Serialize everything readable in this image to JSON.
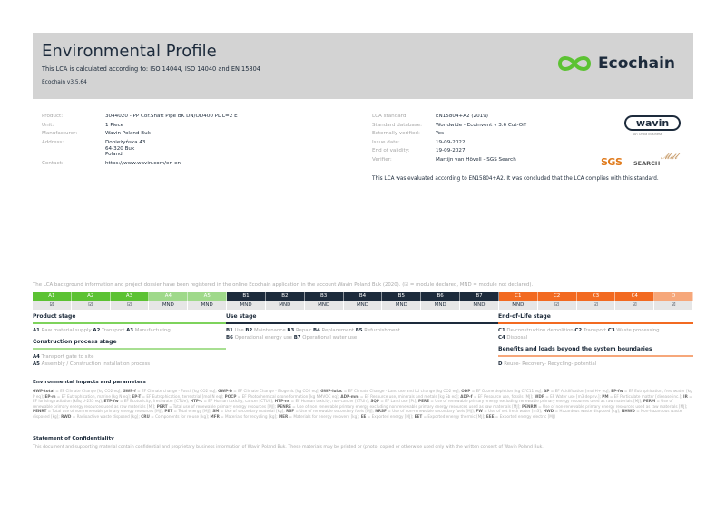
{
  "header": {
    "title": "Environmental Profile",
    "subtitle": "This LCA is calculated according to: ISO 14044, ISO 14040 and EN 15804",
    "version": "Ecochain v3.5.64",
    "logo_text": "Ecochain",
    "logo_color": "#5cc233"
  },
  "product_info": [
    {
      "label": "Product:",
      "value": "3044020 - PP Cor.Shaft Pipe BK DN/OD400 PL L=2 E"
    },
    {
      "label": "Unit:",
      "value": "1 Piece"
    },
    {
      "label": "Manufacturer:",
      "value": "Wavin Poland Buk"
    },
    {
      "label": "Address:",
      "value": "Dobieżyńska 43",
      "value2": "64-320 Buk",
      "value3": "Poland"
    },
    {
      "label": "Contact:",
      "value": "https://www.wavin.com/en-en"
    }
  ],
  "lca_info": [
    {
      "label": "LCA standard:",
      "value": "EN15804+A2 (2019)"
    },
    {
      "label": "Standard database:",
      "value": "Worldwide - Ecoinvent v 3.6 Cut-Off"
    },
    {
      "label": "Externally verified:",
      "value": "Yes"
    },
    {
      "label": "Issue date:",
      "value": "19-09-2022"
    },
    {
      "label": "End of validity:",
      "value": "19-09-2027"
    },
    {
      "label": "Verifier:",
      "value": "Martijn van Hövell - SGS Search"
    }
  ],
  "logos": {
    "wavin": "wavin",
    "wavin_sub": "An Orbia business",
    "sgs": "SGS",
    "search": "SEARCH",
    "signature": "Mdlle"
  },
  "conclusion": "This LCA was evaluated according to EN15804+A2. It was concluded that the LCA complies with this standard.",
  "registration_note": "The LCA background information and project dossier have been registered in the online Ecochain application in the account Wavin Poland Buk (2020). (☑ = module declared, MND = module not declared).",
  "modules": [
    {
      "code": "A1",
      "status": "☑",
      "color": "#5cc233"
    },
    {
      "code": "A2",
      "status": "☑",
      "color": "#5cc233"
    },
    {
      "code": "A3",
      "status": "☑",
      "color": "#5cc233"
    },
    {
      "code": "A4",
      "status": "MND",
      "color": "#9fd98a"
    },
    {
      "code": "A5",
      "status": "MND",
      "color": "#9fd98a"
    },
    {
      "code": "B1",
      "status": "MND",
      "color": "#1d2b3c"
    },
    {
      "code": "B2",
      "status": "MND",
      "color": "#1d2b3c"
    },
    {
      "code": "B3",
      "status": "MND",
      "color": "#1d2b3c"
    },
    {
      "code": "B4",
      "status": "MND",
      "color": "#1d2b3c"
    },
    {
      "code": "B5",
      "status": "MND",
      "color": "#1d2b3c"
    },
    {
      "code": "B6",
      "status": "MND",
      "color": "#1d2b3c"
    },
    {
      "code": "B7",
      "status": "MND",
      "color": "#1d2b3c"
    },
    {
      "code": "C1",
      "status": "MND",
      "color": "#f26a21"
    },
    {
      "code": "C2",
      "status": "☑",
      "color": "#f26a21"
    },
    {
      "code": "C3",
      "status": "☑",
      "color": "#f26a21"
    },
    {
      "code": "C4",
      "status": "☑",
      "color": "#f26a21"
    },
    {
      "code": "D",
      "status": "☑",
      "color": "#f6a77a"
    }
  ],
  "stages": {
    "product": {
      "title": "Product stage",
      "items": [
        [
          "A1",
          "Raw material supply"
        ],
        [
          "A2",
          "Transport"
        ],
        [
          "A3",
          "Manufacturing"
        ]
      ]
    },
    "construction": {
      "title": "Construction process stage",
      "items": [
        [
          "A4",
          "Transport gate to site"
        ],
        [
          "A5",
          "Assembly / Construction installation process"
        ]
      ]
    },
    "use": {
      "title": "Use stage",
      "items": [
        [
          "B1",
          "Use"
        ],
        [
          "B2",
          "Maintenance"
        ],
        [
          "B3",
          "Repair"
        ],
        [
          "B4",
          "Replacement"
        ],
        [
          "B5",
          "Refurbishment"
        ],
        [
          "B6",
          "Operational energy use"
        ],
        [
          "B7",
          "Operational water use"
        ]
      ]
    },
    "eol": {
      "title": "End-of-Life stage",
      "items": [
        [
          "C1",
          "De-construction demolition"
        ],
        [
          "C2",
          "Transport"
        ],
        [
          "C3",
          "Waste processing"
        ],
        [
          "C4",
          "Disposal"
        ]
      ]
    },
    "beyond": {
      "title": "Benefits and loads beyond the system boundaries",
      "items": [
        [
          "D",
          "Reuse- Recovery- Recycling- potential"
        ]
      ]
    }
  },
  "env": {
    "title": "Environmental impacts and parameters",
    "items": [
      [
        "GWP-total",
        "EF Climate Change [kg CO2 eq]"
      ],
      [
        "GWP-f",
        "EF Climate change - Fossil [kg CO2 eq]"
      ],
      [
        "GWP-b",
        "EF Climate Change - Biogenic [kg CO2 eq]"
      ],
      [
        "GWP-luluc",
        "EF Climate Change - Land use and LU change [kg CO2 eq]"
      ],
      [
        "ODP",
        "EF Ozone depletion [kg CFC11 eq]"
      ],
      [
        "AP",
        "EF Acidification [mol H+ eq]"
      ],
      [
        "EP-fw",
        "EF Eutrophication, freshwater [kg P eq]"
      ],
      [
        "EP-m",
        "EF Eutrophication, marine [kg N eq]"
      ],
      [
        "EP-T",
        "EF Eutrophication, terrestrial [mol N eq]"
      ],
      [
        "POCP",
        "EF Photochemical ozone formation [kg NMVOC eq]"
      ],
      [
        "ADP-mm",
        "EF Resource use, minerals and metals [kg Sb eq]"
      ],
      [
        "ADP-f",
        "EF Resource use, fossils [MJ]"
      ],
      [
        "WDP",
        "EF Water use [m3 depriv.]"
      ],
      [
        "PM",
        "EF Particulate matter [disease inc.]"
      ],
      [
        "IR",
        "EF Ionising radiation [kBq U-235 eq]"
      ],
      [
        "ETP-fw",
        "EF Ecotoxicity, freshwater [CTUe]"
      ],
      [
        "HTP-c",
        "EF Human toxicity, cancer [CTUh]"
      ],
      [
        "HTP-nc",
        "EF Human toxicity, non-cancer [CTUh]"
      ],
      [
        "SQP",
        "EF Land use [Pt]"
      ],
      [
        "PERE",
        "Use of renewable primary energy excluding renewable primary energy resources used as raw materials [MJ]"
      ],
      [
        "PERM",
        "Use of renewable primary energy resources used as raw materials [MJ]"
      ],
      [
        "PERT",
        "Total use of renewable primary energy resources [MJ]"
      ],
      [
        "PENRE",
        "Use of non renewable primary energy excluding non renewable primary energy resources used as raw materials [MJ]"
      ],
      [
        "PENRM",
        "Use of non-renewable primary energy resources used as raw materials [MJ]"
      ],
      [
        "PENRT",
        "Total use of non-renewable primary energy resources [MJ]"
      ],
      [
        "PET",
        "Total energy [MJ]"
      ],
      [
        "SM",
        "Use of secondary material [kg]"
      ],
      [
        "RSF",
        "Use of renewable secondary fuels [MJ]"
      ],
      [
        "NRSF",
        "Use of non-renewable secondary fuels [MJ]"
      ],
      [
        "FW",
        "Use of net fresh water [m3]"
      ],
      [
        "HWD",
        "Hazardous waste disposed [kg]"
      ],
      [
        "NHWD",
        "Non-hazardous waste disposed [kg]"
      ],
      [
        "RWD",
        "Radioactive waste disposed [kg]"
      ],
      [
        "CRU",
        "Components for re-use [kg]"
      ],
      [
        "MFR",
        "Materials for recycling [kg]"
      ],
      [
        "MER",
        "Materials for energy recovery [kg]"
      ],
      [
        "EE",
        "Exported energy [MJ]"
      ],
      [
        "EET",
        "Exported energy thermic [MJ]"
      ],
      [
        "EEE",
        "Exported energy electric [MJ]"
      ]
    ]
  },
  "confidentiality": {
    "title": "Statement of Confidentiality",
    "text": "This document and supporting material contain confidential and proprietary business information of Wavin Poland Buk. These materials may be printed or (photo) copied or otherwise used only with the written consent of Wavin Poland Buk."
  }
}
